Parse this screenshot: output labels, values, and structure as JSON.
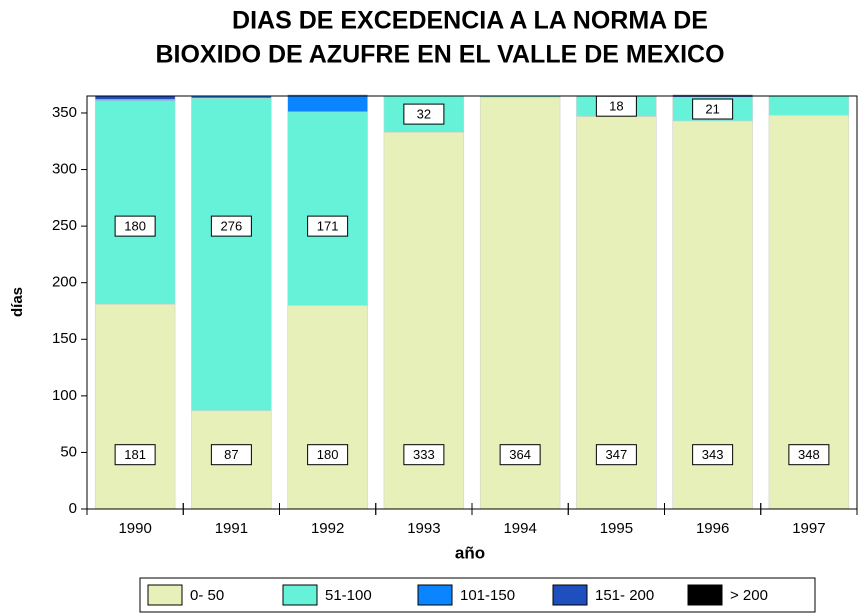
{
  "chart_data": {
    "type": "stacked_bar",
    "title": [
      "DIAS DE EXCEDENCIA A LA NORMA DE",
      "BIOXIDO DE AZUFRE EN EL VALLE DE MEXICO"
    ],
    "xlabel": "año",
    "ylabel": "días",
    "categories": [
      "1990",
      "1991",
      "1992",
      "1993",
      "1994",
      "1995",
      "1996",
      "1997"
    ],
    "series": [
      {
        "name": "0- 50",
        "color": "#e6f0b8",
        "values": [
          181,
          87,
          180,
          333,
          364,
          347,
          343,
          348
        ],
        "labels": true
      },
      {
        "name": "51-100",
        "color": "#66f2d9",
        "values": [
          180,
          276,
          171,
          32,
          1,
          18,
          21,
          17
        ],
        "labels": true
      },
      {
        "name": "101-150",
        "color": "#0a84ff",
        "values": [
          1,
          2,
          15,
          0,
          0,
          0,
          0,
          0
        ]
      },
      {
        "name": "151- 200",
        "color": "#1f4fbf",
        "values": [
          3,
          0,
          0,
          0,
          0,
          0,
          2,
          0
        ]
      },
      {
        "name": "> 200",
        "color": "#000000",
        "values": [
          0,
          0,
          0,
          0,
          0,
          0,
          0,
          0
        ]
      }
    ],
    "ylim": [
      0,
      365
    ],
    "yticks": [
      0,
      50,
      100,
      150,
      200,
      250,
      300,
      350
    ],
    "legend": "bottom"
  }
}
